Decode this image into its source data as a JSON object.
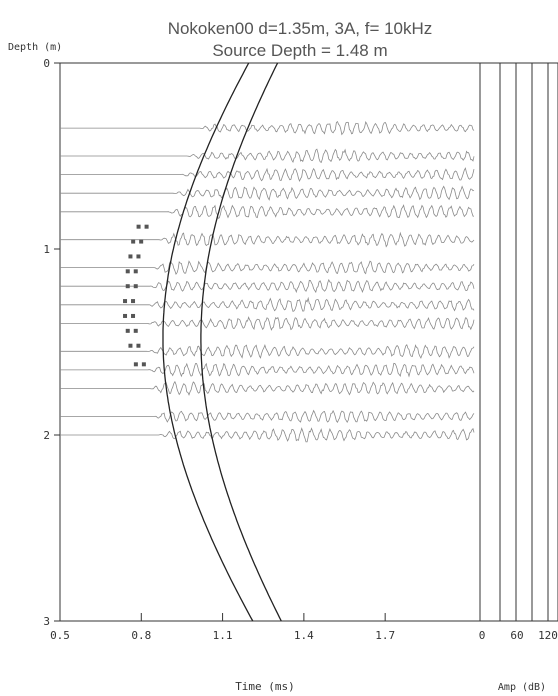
{
  "chart_data": {
    "type": "line",
    "title": "Nokoken00 d=1.35m, 3A, f= 10kHz",
    "subtitle": "Source Depth = 1.48 m",
    "ylabel": "Depth (m)",
    "xlabel": "Time (ms)",
    "amp_label": "Amp (dB)",
    "xlim": [
      0.5,
      2.05
    ],
    "ylim": [
      0,
      3
    ],
    "x_ticks": [
      "0.5",
      "0.8",
      "1.1",
      "1.4",
      "1.7"
    ],
    "y_ticks": [
      "0",
      "1",
      "2",
      "3"
    ],
    "amp_ticks": [
      "0",
      "60",
      "120"
    ],
    "trace_depths": [
      0.35,
      0.5,
      0.6,
      0.7,
      0.8,
      0.95,
      1.1,
      1.2,
      1.3,
      1.4,
      1.55,
      1.65,
      1.75,
      1.9,
      2.0
    ],
    "curves": [
      {
        "source_depth": 1.48,
        "min_time": 0.88
      },
      {
        "source_depth": 1.48,
        "min_time": 1.02
      }
    ],
    "picks": {
      "shown_as": "dots",
      "x": [
        0.79,
        0.77,
        0.76,
        0.75,
        0.75,
        0.74,
        0.74,
        0.75,
        0.76,
        0.78
      ],
      "y": [
        0.88,
        0.96,
        1.04,
        1.12,
        1.2,
        1.28,
        1.36,
        1.44,
        1.52,
        1.62
      ]
    },
    "grid": false
  },
  "colors": {
    "axis": "#333333",
    "trace": "#8a8a8a",
    "curve": "#222222",
    "pick": "#555555"
  }
}
